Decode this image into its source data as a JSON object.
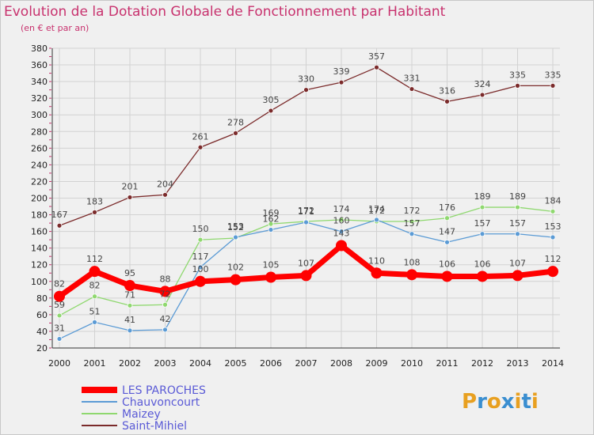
{
  "chart_data": {
    "type": "line",
    "title": "Evolution de la Dotation Globale de Fonctionnement par Habitant",
    "subtitle": "(en € et par an)",
    "xlabel": "",
    "ylabel": "",
    "ylim": [
      20,
      380
    ],
    "yticks": [
      20,
      40,
      60,
      80,
      100,
      120,
      140,
      160,
      180,
      200,
      220,
      240,
      260,
      280,
      300,
      320,
      340,
      360,
      380
    ],
    "categories": [
      "2000",
      "2001",
      "2002",
      "2003",
      "2004",
      "2005",
      "2006",
      "2007",
      "2008",
      "2009",
      "2010",
      "2011",
      "2012",
      "2013",
      "2014"
    ],
    "grid": true,
    "legend_position": "bottom-left",
    "series": [
      {
        "name": "LES PAROCHES",
        "color": "#ff0000",
        "values": [
          82,
          112,
          95,
          88,
          100,
          102,
          105,
          107,
          143,
          110,
          108,
          106,
          106,
          107,
          112
        ]
      },
      {
        "name": "Chauvoncourt",
        "color": "#5b9bd5",
        "values": [
          31,
          51,
          41,
          42,
          117,
          153,
          162,
          171,
          160,
          174,
          157,
          147,
          157,
          157,
          153
        ]
      },
      {
        "name": "Maizey",
        "color": "#8fd86f",
        "values": [
          59,
          82,
          71,
          72,
          150,
          152,
          169,
          172,
          174,
          172,
          172,
          176,
          189,
          189,
          184
        ]
      },
      {
        "name": "Saint-Mihiel",
        "color": "#7b2b2b",
        "values": [
          167,
          183,
          201,
          204,
          261,
          278,
          305,
          330,
          339,
          357,
          331,
          316,
          324,
          335,
          335
        ]
      }
    ]
  },
  "logo": {
    "letters": [
      "P",
      "r",
      "o",
      "x",
      "i",
      "t",
      "i"
    ],
    "colors": [
      "#e8a020",
      "#3a8ed0",
      "#e8a020",
      "#3a8ed0",
      "#e8a020",
      "#3a8ed0",
      "#e8a020"
    ]
  }
}
